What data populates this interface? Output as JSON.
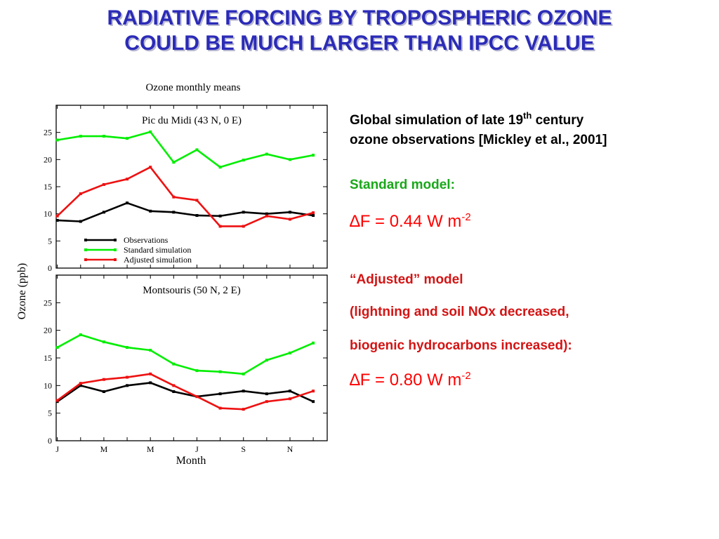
{
  "slide": {
    "title_line1": "RADIATIVE FORCING BY TROPOSPHERIC OZONE",
    "title_line2": "COULD BE MUCH LARGER THAN IPCC VALUE"
  },
  "notes": {
    "intro_a": "Global simulation of late 19",
    "intro_sup": "th",
    "intro_b": " century",
    "intro_line2": "ozone observations [Mickley et al., 2001]",
    "standard_label": "Standard model:",
    "standard_delta": "∆",
    "standard_formula": "F = 0.44 W m",
    "standard_exp": "-2",
    "adjusted_label": "“Adjusted” model",
    "adjusted_detail1": "(lightning and soil NOx decreased,",
    "adjusted_detail2": "biogenic hydrocarbons increased):",
    "adjusted_delta": "∆",
    "adjusted_formula": "F = 0.80 W m",
    "adjusted_exp": "-2"
  },
  "colors": {
    "title": "#2b2bb8",
    "observations": "#000000",
    "standard": "#00ee00",
    "adjusted": "#ee1111"
  },
  "chart_data": {
    "type": "line",
    "title": "Ozone monthly means",
    "ylabel": "Ozone (ppb)",
    "xlabel": "Month",
    "ylim": [
      0,
      30
    ],
    "yticks": [
      "0",
      "5",
      "10",
      "15",
      "20",
      "25"
    ],
    "ytick_values": [
      0,
      5,
      10,
      15,
      20,
      25
    ],
    "x": [
      1,
      2,
      3,
      4,
      5,
      6,
      7,
      8,
      9,
      10,
      11,
      12
    ],
    "xtick_labels": [
      "J",
      "M",
      "M",
      "J",
      "S",
      "N"
    ],
    "xtick_positions": [
      1,
      3,
      5,
      7,
      9,
      11
    ],
    "legend": [
      "Observations",
      "Standard simulation",
      "Adjusted simulation"
    ],
    "legend_position": "bottom-left of top panel",
    "panels": [
      {
        "title": "Pic du Midi (43 N, 0 E)",
        "series": [
          {
            "name": "Observations",
            "values": [
              8.8,
              8.6,
              10.3,
              12.0,
              10.5,
              10.3,
              9.7,
              9.6,
              10.3,
              10.0,
              10.3,
              9.7
            ]
          },
          {
            "name": "Standard simulation",
            "values": [
              23.6,
              24.3,
              24.3,
              23.9,
              25.1,
              19.5,
              21.8,
              18.6,
              19.9,
              21.0,
              20.0,
              20.8
            ]
          },
          {
            "name": "Adjusted simulation",
            "values": [
              9.6,
              13.7,
              15.4,
              16.4,
              18.6,
              13.1,
              12.5,
              7.7,
              7.7,
              9.6,
              9.0,
              10.2
            ]
          }
        ]
      },
      {
        "title": "Montsouris (50 N, 2 E)",
        "series": [
          {
            "name": "Observations",
            "values": [
              7.1,
              10.0,
              8.9,
              10.0,
              10.5,
              8.9,
              8.0,
              8.5,
              9.0,
              8.5,
              9.0,
              7.1
            ]
          },
          {
            "name": "Standard simulation",
            "values": [
              16.9,
              19.2,
              17.9,
              16.9,
              16.4,
              13.9,
              12.7,
              12.5,
              12.1,
              14.6,
              15.9,
              17.7
            ]
          },
          {
            "name": "Adjusted simulation",
            "values": [
              7.3,
              10.4,
              11.1,
              11.5,
              12.1,
              10.0,
              8.0,
              5.9,
              5.7,
              7.1,
              7.6,
              9.0
            ]
          }
        ]
      }
    ]
  }
}
